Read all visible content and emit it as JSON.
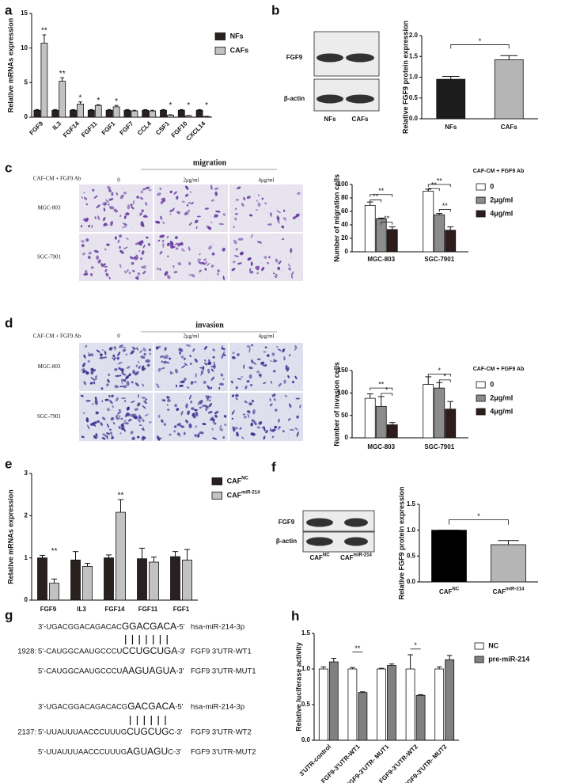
{
  "panels": [
    "a",
    "b",
    "c",
    "d",
    "e",
    "f",
    "g",
    "h"
  ],
  "blots": [
    {
      "rows": [
        "FGF9",
        "β-actin"
      ],
      "lanes": [
        "NFs",
        "CAFs"
      ]
    },
    {
      "rows": [
        "FGF9",
        "β-actin"
      ],
      "lanes": [
        "CAF",
        "CAF"
      ],
      "lane_sup": [
        "NC",
        "miR-214"
      ]
    }
  ],
  "assays": [
    {
      "title": "migration",
      "treatment": "CAF-CM + FGF9  Ab",
      "doses": [
        "0",
        "2μg/ml",
        "4μg/ml"
      ],
      "cell_lines": [
        "MGC-803",
        "SGC-7901"
      ]
    },
    {
      "title": "invasion",
      "treatment": "CAF-CM + FGF9 Ab",
      "doses": [
        "0",
        "2μg/ml",
        "4μg/ml"
      ],
      "cell_lines": [
        "MGC-803",
        "SGC-7901"
      ]
    }
  ],
  "sequences": [
    {
      "position": null,
      "parts": [
        "3'-UGACGGACAGACAC",
        "GGACGACA",
        "-5'"
      ],
      "name": "hsa-miR-214-3p"
    },
    {
      "position": "1928:",
      "parts": [
        "5'-CAUGGCAAUGCCCU",
        "CCUGCUGA",
        "-3'"
      ],
      "name": "FGF9 3'UTR-WT1"
    },
    {
      "position": null,
      "parts": [
        "5'-CAUGGCAAUGCCCU",
        "AAGUAGUA",
        "-3'"
      ],
      "name": "FGF9 3'UTR-MUT1"
    },
    {
      "position": null,
      "parts": [
        "3'-UGACGGACAGACACG",
        "GACGACA",
        "-5'"
      ],
      "name": "hsa-miR-214-3p"
    },
    {
      "position": "2137:",
      "parts": [
        "5'-UUAUUUAACCCUUUG",
        "CUGCUG",
        "C-3'"
      ],
      "name": "FGF9 3'UTR-WT2"
    },
    {
      "position": null,
      "parts": [
        "5'-UUAUUUAACCCUUUG",
        "AGUAGU",
        "C-3'"
      ],
      "name": "FGF9 3'UTR-MUT2"
    }
  ],
  "chart_data": [
    {
      "type": "bar",
      "ylabel": "Relative  mRNAs expression",
      "categories": [
        "FGF9",
        "IL3",
        "FGF14",
        "FGF11",
        "FGF1",
        "FGF7",
        "CCL4",
        "CSF1",
        "FGF10",
        "CXCL14"
      ],
      "series": [
        {
          "name": "NFs",
          "color": "#2b2020",
          "values": [
            1,
            1,
            1,
            1,
            1,
            1,
            1,
            1,
            1,
            1
          ],
          "errors": [
            0.1,
            0.1,
            0.1,
            0.1,
            0.1,
            0.1,
            0.1,
            0.1,
            0.1,
            0.1
          ]
        },
        {
          "name": "CAFs",
          "color": "#c2c2c2",
          "values": [
            10.7,
            5.2,
            1.9,
            1.7,
            1.5,
            0.9,
            0.9,
            0.3,
            0.2,
            0.1
          ],
          "errors": [
            1.2,
            0.5,
            0.3,
            0.1,
            0.2,
            0.1,
            0.1,
            0.05,
            0.05,
            0.03
          ]
        }
      ],
      "significance": [
        "**",
        "**",
        "*",
        "*",
        "*",
        null,
        null,
        "*",
        "*",
        "*"
      ],
      "ylim": [
        0,
        15
      ],
      "yticks": [
        0,
        5,
        10,
        15
      ]
    },
    {
      "type": "bar",
      "ylabel": "Relative FGF9 protein expression",
      "categories": [
        "NFs",
        "CAFs"
      ],
      "values": [
        0.95,
        1.42
      ],
      "errors": [
        0.07,
        0.1
      ],
      "colors": [
        "#1c1c1c",
        "#b5b5b5"
      ],
      "comparisons": [
        "*"
      ],
      "ylim": [
        0,
        2
      ],
      "yticks": [
        {
          "value": 0,
          "label": "0.0"
        },
        0.5,
        {
          "value": 1,
          "label": "1.0"
        },
        1.5,
        {
          "value": 2,
          "label": "2.0"
        }
      ]
    },
    {
      "type": "bar",
      "ylabel": "Number of migration cells",
      "legend_title": "CAF-CM + FGF9  Ab",
      "categories": [
        "MGC-803",
        "SGC-7901"
      ],
      "series": [
        {
          "name": "0",
          "color": "#ffffff",
          "values": [
            69,
            90
          ],
          "errors": [
            5,
            3
          ]
        },
        {
          "name": "2μg/ml",
          "color": "#8c8c8c",
          "values": [
            49,
            55
          ],
          "errors": [
            1,
            2
          ]
        },
        {
          "name": "4μg/ml",
          "color": "#2e1c1c",
          "values": [
            33,
            32
          ],
          "errors": [
            4,
            5
          ]
        }
      ],
      "comparisons": [
        "**",
        "**",
        "**",
        "**",
        "**",
        "**"
      ],
      "ylim": [
        0,
        100
      ],
      "yticks": [
        0,
        20,
        40,
        60,
        80,
        100
      ]
    },
    {
      "type": "bar",
      "ylabel": "Number of invasion cells",
      "legend_title": "CAF-CM + FGF9 Ab",
      "categories": [
        "MGC-803",
        "SGC-7901"
      ],
      "series": [
        {
          "name": "0",
          "color": "#ffffff",
          "values": [
            88,
            119
          ],
          "errors": [
            10,
            17
          ]
        },
        {
          "name": "2μg/ml",
          "color": "#8c8c8c",
          "values": [
            70,
            111
          ],
          "errors": [
            22,
            12
          ]
        },
        {
          "name": "4μg/ml",
          "color": "#2e1c1c",
          "values": [
            29,
            64
          ],
          "errors": [
            5,
            17
          ]
        }
      ],
      "comparisons": [
        "**",
        "*",
        "*",
        "*"
      ],
      "ylim": [
        0,
        150
      ],
      "yticks": [
        0,
        50,
        100,
        150
      ]
    },
    {
      "type": "bar",
      "ylabel": "Relative  mRNAs expression",
      "categories": [
        "FGF9",
        "IL3",
        "FGF14",
        "FGF11",
        "FGF1"
      ],
      "series": [
        {
          "name": "CAF",
          "name_sup": "NC",
          "color": "#2b2020",
          "values": [
            1.0,
            0.95,
            1.0,
            0.98,
            1.03
          ],
          "errors": [
            0.06,
            0.2,
            0.07,
            0.25,
            0.12
          ]
        },
        {
          "name": "CAF",
          "name_sup": "miR-214",
          "color": "#c2c2c2",
          "values": [
            0.4,
            0.8,
            2.08,
            0.9,
            0.95
          ],
          "errors": [
            0.1,
            0.07,
            0.3,
            0.12,
            0.25
          ]
        }
      ],
      "significance": [
        "**",
        null,
        "**",
        null,
        null
      ],
      "ylim": [
        0,
        3
      ],
      "yticks": [
        0,
        1,
        2,
        3
      ]
    },
    {
      "type": "bar",
      "ylabel": "Relative FGF9 protein expression",
      "categories": [
        "CAF",
        "CAF"
      ],
      "category_sup": [
        "NC",
        "miR-214"
      ],
      "values": [
        1.0,
        0.72
      ],
      "errors": [
        0,
        0.08
      ],
      "colors": [
        "#000000",
        "#b5b5b5"
      ],
      "comparisons": [
        "*"
      ],
      "ylim": [
        0,
        1.5
      ],
      "yticks": [
        {
          "value": 0,
          "label": "0.0"
        },
        0.5,
        {
          "value": 1,
          "label": "1.0"
        },
        1.5
      ]
    },
    {
      "type": "bar",
      "ylabel": "Relative luciferase activity",
      "categories": [
        "3'UTR-control",
        "FGF9-3'UTR-WT1",
        "FGF9-3'UTR- MUT1",
        "FGF9-3'UTR-WT2",
        "FGF9-3'UTR- MUT2"
      ],
      "series": [
        {
          "name": "NC",
          "color": "#ffffff",
          "values": [
            1.0,
            1.0,
            1.0,
            1.0,
            1.0
          ],
          "errors": [
            0.03,
            0.02,
            0.01,
            0.2,
            0.03
          ]
        },
        {
          "name": "pre-miR-214",
          "color": "#808080",
          "values": [
            1.1,
            0.67,
            1.05,
            0.63,
            1.13
          ],
          "errors": [
            0.05,
            0.01,
            0.02,
            0.01,
            0.06
          ]
        }
      ],
      "comparisons": [
        "**",
        "*"
      ],
      "ylim": [
        0,
        1.5
      ],
      "yticks": [
        {
          "value": 0,
          "label": "0.0"
        },
        0.5,
        {
          "value": 1,
          "label": "1.0"
        },
        1.5
      ]
    }
  ]
}
